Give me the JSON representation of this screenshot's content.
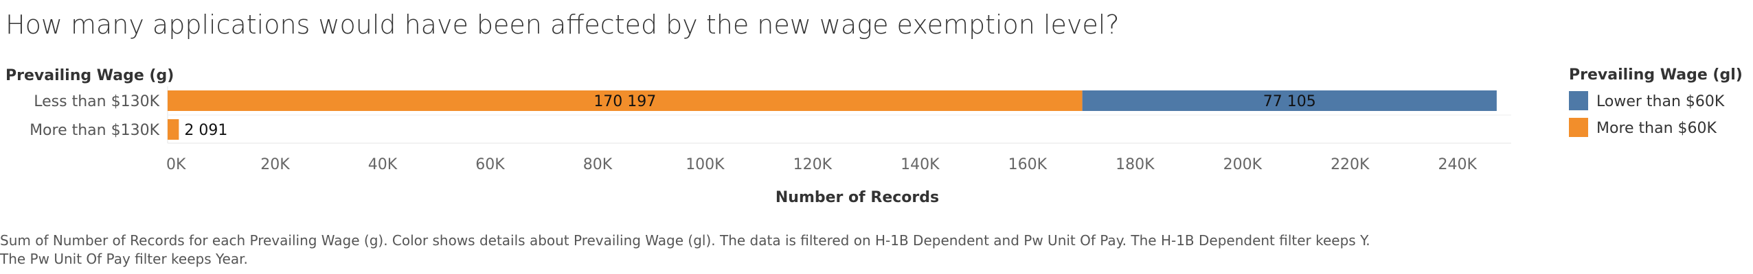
{
  "title": "How many applications would have been affected by the new wage exemption level?",
  "caption_lines": [
    "Sum of Number of Records for each Prevailing Wage (g).  Color shows details about Prevailing Wage (gl). The data is filtered on H-1B Dependent and Pw Unit Of Pay. The H-1B Dependent filter keeps Y.",
    "The Pw Unit Of Pay filter keeps Year."
  ],
  "colors": {
    "Lower than $60K": "#4e79a7",
    "More than $60K": "#f28e2b"
  },
  "chart_data": {
    "type": "bar",
    "orientation": "horizontal",
    "stacked": true,
    "row_header": "Prevailing Wage (g)",
    "categories": [
      "Less than $130K",
      "More than $130K"
    ],
    "series": [
      {
        "name": "More than $60K",
        "values": [
          170197,
          2091
        ],
        "labels": [
          "170 197",
          "2 091"
        ]
      },
      {
        "name": "Lower than $60K",
        "values": [
          77105,
          0
        ],
        "labels": [
          "77 105",
          ""
        ]
      }
    ],
    "xlabel": "Number of Records",
    "ylabel": "",
    "xlim": [
      0,
      250000
    ],
    "xticks": [
      0,
      20000,
      40000,
      60000,
      80000,
      100000,
      120000,
      140000,
      160000,
      180000,
      200000,
      220000,
      240000
    ],
    "xtick_labels": [
      "0K",
      "20K",
      "40K",
      "60K",
      "80K",
      "100K",
      "120K",
      "140K",
      "160K",
      "180K",
      "200K",
      "220K",
      "240K"
    ],
    "legend": {
      "title": "Prevailing Wage (gl)",
      "placement": "right",
      "items": [
        "Lower than $60K",
        "More than $60K"
      ]
    },
    "grid": false
  }
}
